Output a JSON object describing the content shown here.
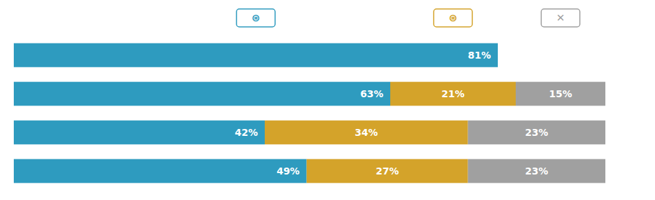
{
  "chart_data": {
    "type": "bar",
    "orientation": "horizontal",
    "stacked": true,
    "data_labels": true,
    "tick_labels": false,
    "grid": false,
    "categories": [
      null,
      null,
      null,
      null
    ],
    "xlim": [
      0,
      105
    ],
    "annotations": [
      "⊛",
      "⊛",
      "✕"
    ],
    "series": [
      {
        "color": "#2e9bbf",
        "values": [
          81,
          63,
          42,
          49
        ],
        "value_labels": [
          "81%",
          "63%",
          "42%",
          "49%"
        ]
      },
      {
        "color": "#d4a32a",
        "values": [
          0,
          21,
          34,
          27
        ],
        "value_labels": [
          null,
          "21%",
          "34%",
          "27%"
        ]
      },
      {
        "color": "#a0a0a0",
        "values": [
          0,
          15,
          23,
          23
        ],
        "value_labels": [
          null,
          "15%",
          "23%",
          "23%"
        ]
      }
    ]
  }
}
